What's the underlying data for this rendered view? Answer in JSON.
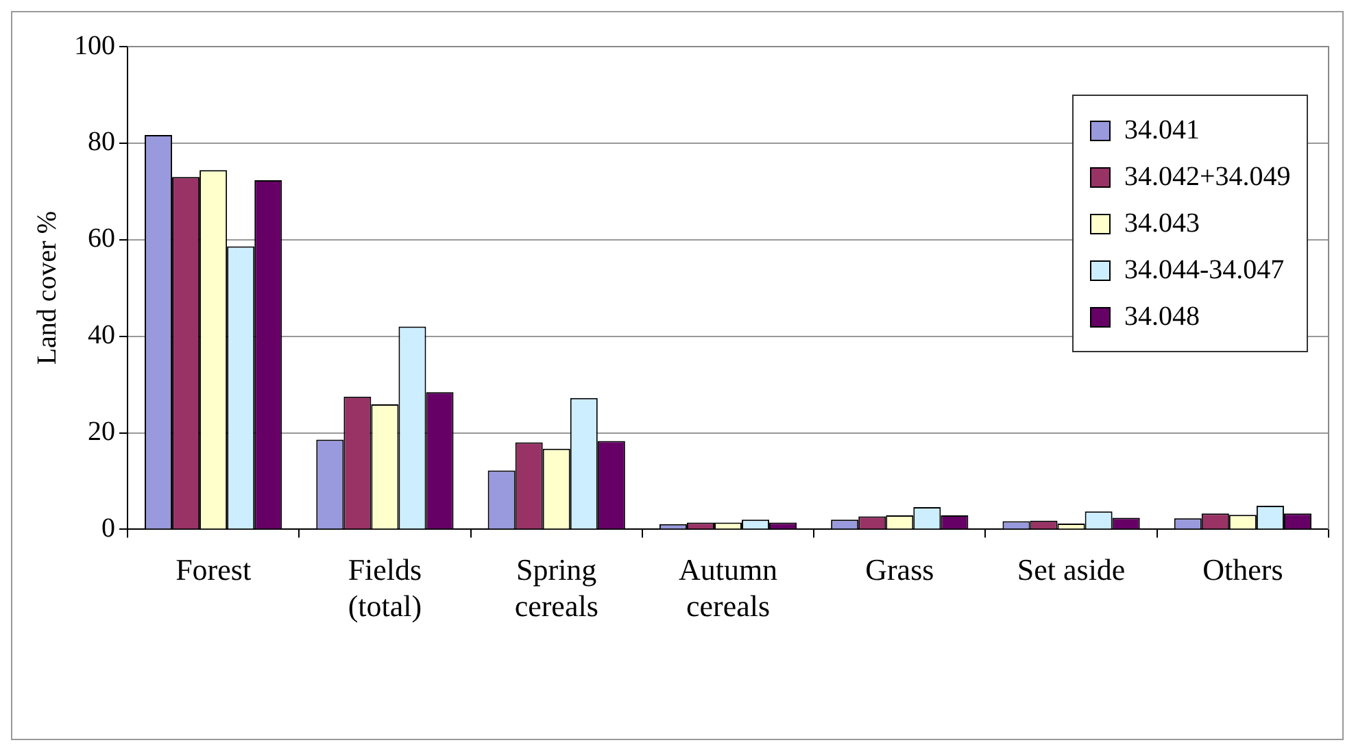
{
  "chart_data": {
    "type": "bar",
    "ylabel": "Land cover %",
    "categories": [
      "Forest",
      "Fields\n(total)",
      "Spring\ncereals",
      "Autumn\ncereals",
      "Grass",
      "Set aside",
      "Others"
    ],
    "series": [
      {
        "name": "34.041",
        "color": "#9999dd",
        "values": [
          81.7,
          18.6,
          12.2,
          1.1,
          2,
          1.7,
          2.3
        ]
      },
      {
        "name": "34.042+34.049",
        "color": "#993366",
        "values": [
          73,
          27.5,
          18,
          1.4,
          2.7,
          1.8,
          3.3
        ]
      },
      {
        "name": "34.043",
        "color": "#ffffcc",
        "values": [
          74.4,
          25.9,
          16.7,
          1.4,
          2.9,
          1.2,
          3
        ]
      },
      {
        "name": "34.044-34.047",
        "color": "#cceeff",
        "values": [
          58.6,
          42,
          27.2,
          2,
          4.6,
          3.7,
          4.9
        ]
      },
      {
        "name": "34.048",
        "color": "#660066",
        "values": [
          72.3,
          28.4,
          18.3,
          1.4,
          2.9,
          2.4,
          3.3
        ]
      }
    ],
    "ylim": [
      0,
      100
    ],
    "yticks": [
      0,
      20,
      40,
      60,
      80,
      100
    ],
    "grid": "y",
    "legend": "top right"
  }
}
